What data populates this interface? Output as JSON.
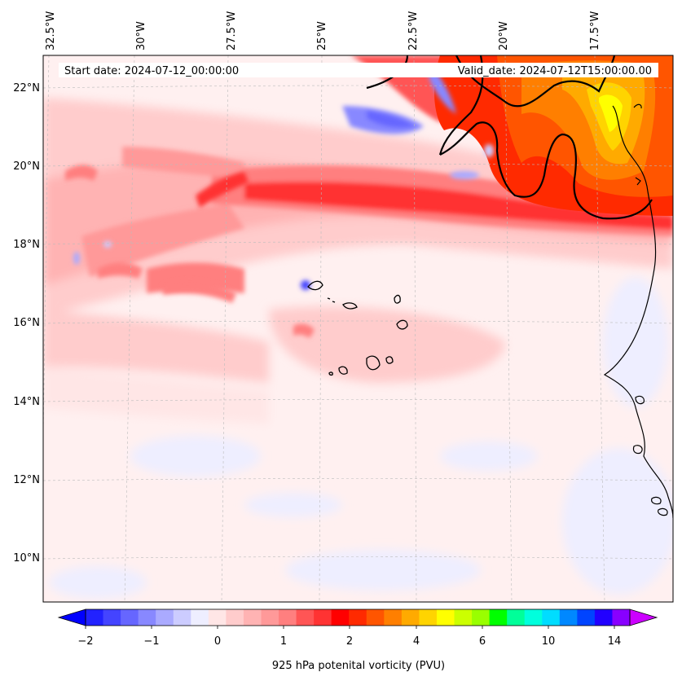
{
  "header": {
    "start_date": "Start date: 2024-07-12_00:00:00",
    "valid_date": "Valid_date: 2024-07-12T15:00:00.00"
  },
  "map": {
    "region": "Eastern tropical North Atlantic, Cape Verde and West African coast",
    "lon_range_deg": [
      -33.2,
      -15.9
    ],
    "lat_range_deg": [
      8.9,
      22.8
    ],
    "lon_ticks": [
      "32.5°W",
      "30°W",
      "27.5°W",
      "25°W",
      "22.5°W",
      "20°W",
      "17.5°W"
    ],
    "lat_ticks": [
      "22°N",
      "20°N",
      "18°N",
      "16°N",
      "14°N",
      "12°N",
      "10°N"
    ],
    "gridlines": true
  },
  "colorbar": {
    "label": "925 hPa potenital vorticity (PVU)",
    "tick_labels": [
      "−2",
      "−1",
      "0",
      "1",
      "2",
      "4",
      "6",
      "10",
      "14"
    ],
    "colors": [
      "#0000ff",
      "#2222ff",
      "#4444ff",
      "#6666ff",
      "#8888ff",
      "#aaaaff",
      "#ccccff",
      "#eeeeff",
      "#ffe6e6",
      "#ffcccc",
      "#ffb3b3",
      "#ff9999",
      "#ff7f7f",
      "#ff5555",
      "#ff3333",
      "#ff0000",
      "#ff2a00",
      "#ff5500",
      "#ff7f00",
      "#ffaa00",
      "#ffd400",
      "#ffff00",
      "#ccff00",
      "#99ff00",
      "#00ff00",
      "#00ff99",
      "#00ffdd",
      "#00ddff",
      "#0088ff",
      "#0044ff",
      "#2200ff",
      "#8800ff",
      "#cc00ff"
    ]
  }
}
